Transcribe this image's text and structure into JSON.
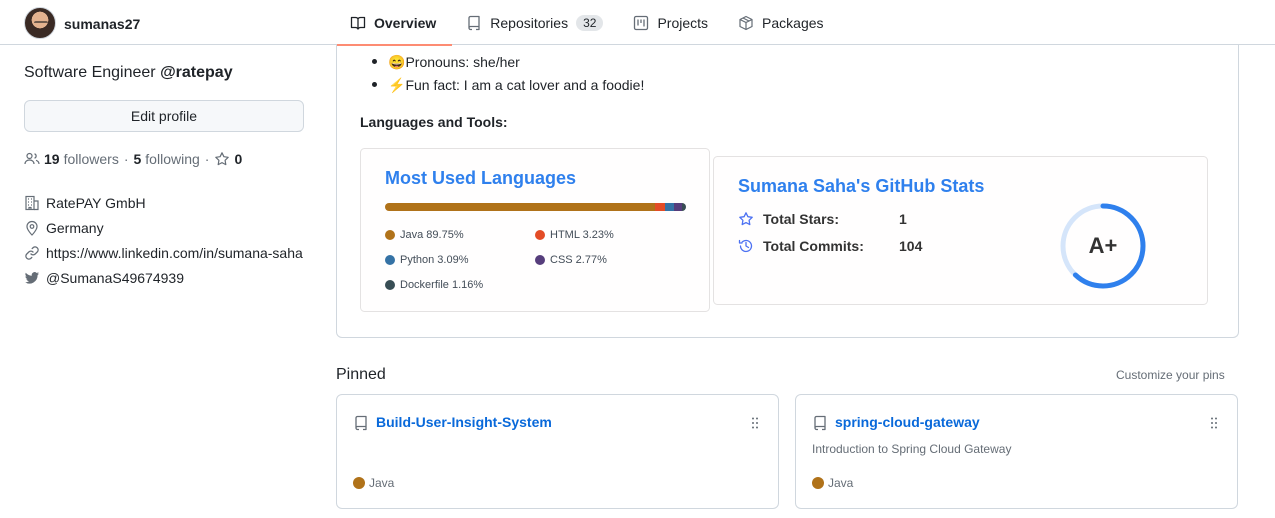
{
  "header": {
    "username": "sumanas27",
    "tabs": [
      {
        "label": "Overview",
        "icon": "book-icon",
        "active": true
      },
      {
        "label": "Repositories",
        "icon": "repo-icon",
        "count": "32"
      },
      {
        "label": "Projects",
        "icon": "project-icon"
      },
      {
        "label": "Packages",
        "icon": "package-icon"
      }
    ]
  },
  "profile": {
    "bio_prefix": "Software Engineer ",
    "bio_org": "@ratepay",
    "edit_label": "Edit profile",
    "followers_count": "19",
    "followers_label": "followers",
    "following_count": "5",
    "following_label": "following",
    "separator": "·",
    "stars_count": "0",
    "company": "RatePAY GmbH",
    "location": "Germany",
    "website": "https://www.linkedin.com/in/sumana-saha",
    "twitter": "@SumanaS49674939"
  },
  "readme": {
    "bullets": [
      {
        "emoji": "😄",
        "text": "Pronouns: she/her"
      },
      {
        "emoji": "⚡",
        "text": "Fun fact: I am a cat lover and a foodie!"
      }
    ],
    "languages_heading": "Languages and Tools:",
    "langs_card": {
      "title": "Most Used Languages",
      "items": [
        {
          "name": "Java",
          "percent": 89.75,
          "label": "Java 89.75%",
          "color": "#b07219"
        },
        {
          "name": "HTML",
          "percent": 3.23,
          "label": "HTML 3.23%",
          "color": "#e34c26"
        },
        {
          "name": "Python",
          "percent": 3.09,
          "label": "Python 3.09%",
          "color": "#3572a5"
        },
        {
          "name": "CSS",
          "percent": 2.77,
          "label": "CSS 2.77%",
          "color": "#563d7c"
        },
        {
          "name": "Dockerfile",
          "percent": 1.16,
          "label": "Dockerfile 1.16%",
          "color": "#384d54"
        }
      ]
    },
    "stats_card": {
      "title": "Sumana Saha's GitHub Stats",
      "stars_label": "Total Stars:",
      "stars_value": "1",
      "commits_label": "Total Commits:",
      "commits_value": "104",
      "rank": "A+",
      "rank_progress": 0.62
    }
  },
  "pinned": {
    "title": "Pinned",
    "customize_label": "Customize your pins",
    "items": [
      {
        "name": "Build-User-Insight-System",
        "description": "",
        "language": "Java",
        "language_color": "#b07219"
      },
      {
        "name": "spring-cloud-gateway",
        "description": "Introduction to Spring Cloud Gateway",
        "language": "Java",
        "language_color": "#b07219"
      }
    ]
  },
  "colors": {
    "accent": "#2f80ed",
    "link": "#0969da",
    "tab_underline": "#fd8c73",
    "border": "#d0d7de"
  }
}
